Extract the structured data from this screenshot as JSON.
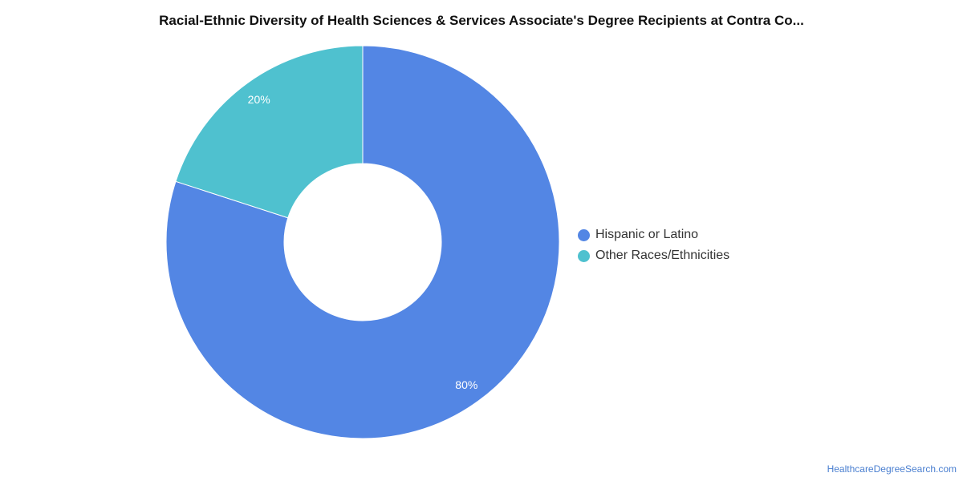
{
  "chart_data": {
    "type": "pie",
    "title": "Racial-Ethnic Diversity of Health Sciences & Services Associate's Degree Recipients at Contra Co...",
    "categories": [
      "Hispanic or Latino",
      "Other Races/Ethnicities"
    ],
    "values": [
      80,
      20
    ],
    "data_labels": [
      "80%",
      "20%"
    ],
    "colors": [
      "#5386e4",
      "#4fc1cf"
    ],
    "donut": true,
    "legend_position": "right"
  },
  "legend": {
    "items": [
      {
        "label": "Hispanic or Latino",
        "color": "#5386e4"
      },
      {
        "label": "Other Races/Ethnicities",
        "color": "#4fc1cf"
      }
    ]
  },
  "footer": {
    "credit": "HealthcareDegreeSearch.com"
  }
}
